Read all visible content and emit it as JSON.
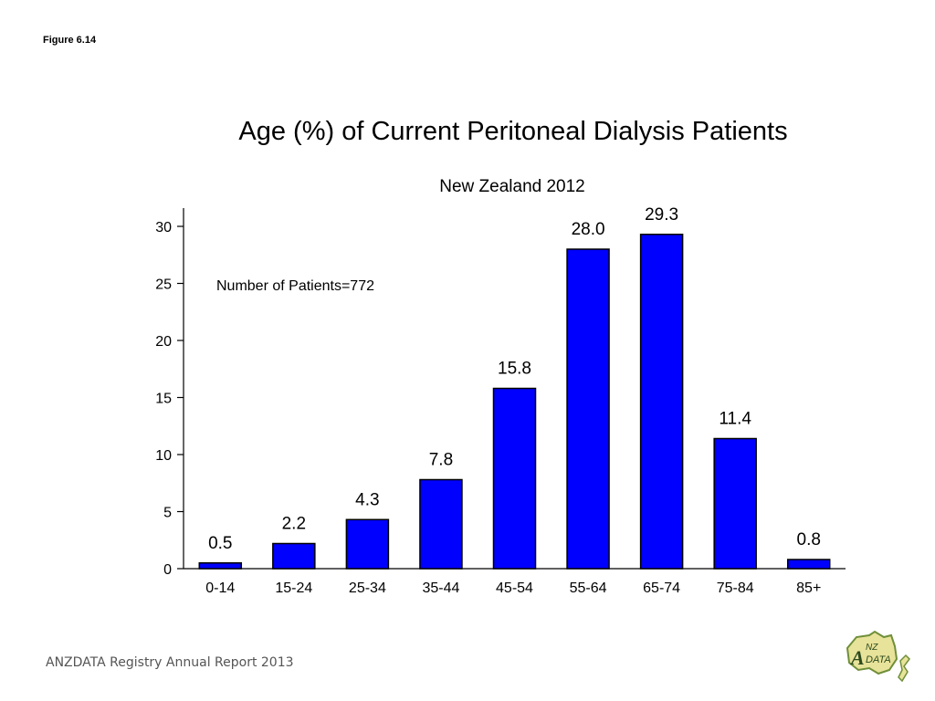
{
  "figure_label": "Figure 6.14",
  "footer_text": "ANZDATA Registry Annual Report 2013",
  "logo": {
    "icon": "anzdata-logo",
    "text_a": "A",
    "text_nz": "NZ",
    "text_data": "DATA"
  },
  "chart_data": {
    "type": "bar",
    "title": "Age (%) of Current Peritoneal Dialysis Patients",
    "subtitle": "New Zealand 2012",
    "annotation": "Number of Patients=772",
    "categories": [
      "0-14",
      "15-24",
      "25-34",
      "35-44",
      "45-54",
      "55-64",
      "65-74",
      "75-84",
      "85+"
    ],
    "values": [
      0.5,
      2.2,
      4.3,
      7.8,
      15.8,
      28.0,
      29.3,
      11.4,
      0.8
    ],
    "value_labels": [
      "0.5",
      "2.2",
      "4.3",
      "7.8",
      "15.8",
      "28.0",
      "29.3",
      "11.4",
      "0.8"
    ],
    "yticks": [
      "0",
      "5",
      "10",
      "15",
      "20",
      "25",
      "30"
    ],
    "ylim": [
      0,
      30
    ],
    "xlabel": "",
    "ylabel": "",
    "grid": false,
    "colors": {
      "bar_fill": "#0000ff",
      "bar_stroke": "#000000"
    }
  }
}
